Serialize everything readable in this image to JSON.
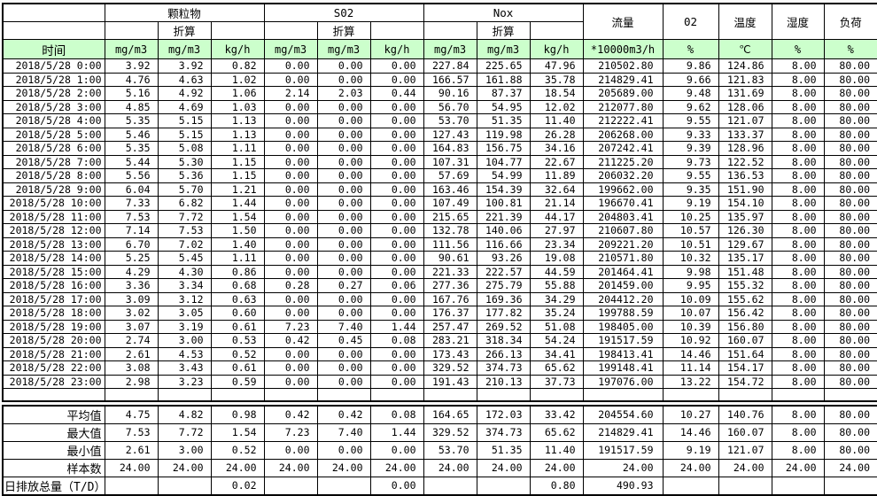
{
  "table": {
    "header": {
      "time_label": "时间",
      "groups": [
        {
          "label": "颗粒物",
          "sub": "折算"
        },
        {
          "label": "S02",
          "sub": "折算"
        },
        {
          "label": "Nox",
          "sub": "折算"
        }
      ],
      "flow_label": "流量",
      "o2_label": "02",
      "temp_label": "温度",
      "humidity_label": "湿度",
      "load_label": "负荷",
      "units": [
        "mg/m3",
        "mg/m3",
        "kg/h",
        "mg/m3",
        "mg/m3",
        "kg/h",
        "mg/m3",
        "mg/m3",
        "kg/h",
        "*10000m3/h",
        "%",
        "℃",
        "%",
        "%"
      ]
    },
    "header_green": "#ccffcc",
    "rows": [
      {
        "time": "2018/5/28 0:00",
        "v": [
          "3.92",
          "3.92",
          "0.82",
          "0.00",
          "0.00",
          "0.00",
          "227.84",
          "225.65",
          "47.96",
          "210502.80",
          "9.86",
          "124.86",
          "8.00",
          "80.00"
        ]
      },
      {
        "time": "2018/5/28 1:00",
        "v": [
          "4.76",
          "4.63",
          "1.02",
          "0.00",
          "0.00",
          "0.00",
          "166.57",
          "161.88",
          "35.78",
          "214829.41",
          "9.66",
          "121.83",
          "8.00",
          "80.00"
        ]
      },
      {
        "time": "2018/5/28 2:00",
        "v": [
          "5.16",
          "4.92",
          "1.06",
          "2.14",
          "2.03",
          "0.44",
          "90.16",
          "87.37",
          "18.54",
          "205689.00",
          "9.48",
          "131.69",
          "8.00",
          "80.00"
        ]
      },
      {
        "time": "2018/5/28 3:00",
        "v": [
          "4.85",
          "4.69",
          "1.03",
          "0.00",
          "0.00",
          "0.00",
          "56.70",
          "54.95",
          "12.02",
          "212077.80",
          "9.62",
          "128.06",
          "8.00",
          "80.00"
        ]
      },
      {
        "time": "2018/5/28 4:00",
        "v": [
          "5.35",
          "5.15",
          "1.13",
          "0.00",
          "0.00",
          "0.00",
          "53.70",
          "51.35",
          "11.40",
          "212222.41",
          "9.55",
          "121.07",
          "8.00",
          "80.00"
        ]
      },
      {
        "time": "2018/5/28 5:00",
        "v": [
          "5.46",
          "5.15",
          "1.13",
          "0.00",
          "0.00",
          "0.00",
          "127.43",
          "119.98",
          "26.28",
          "206268.00",
          "9.33",
          "133.37",
          "8.00",
          "80.00"
        ]
      },
      {
        "time": "2018/5/28 6:00",
        "v": [
          "5.35",
          "5.08",
          "1.11",
          "0.00",
          "0.00",
          "0.00",
          "164.83",
          "156.75",
          "34.16",
          "207242.41",
          "9.39",
          "128.96",
          "8.00",
          "80.00"
        ]
      },
      {
        "time": "2018/5/28 7:00",
        "v": [
          "5.44",
          "5.30",
          "1.15",
          "0.00",
          "0.00",
          "0.00",
          "107.31",
          "104.77",
          "22.67",
          "211225.20",
          "9.73",
          "122.52",
          "8.00",
          "80.00"
        ]
      },
      {
        "time": "2018/5/28 8:00",
        "v": [
          "5.56",
          "5.36",
          "1.15",
          "0.00",
          "0.00",
          "0.00",
          "57.69",
          "54.99",
          "11.89",
          "206032.20",
          "9.55",
          "136.53",
          "8.00",
          "80.00"
        ]
      },
      {
        "time": "2018/5/28 9:00",
        "v": [
          "6.04",
          "5.70",
          "1.21",
          "0.00",
          "0.00",
          "0.00",
          "163.46",
          "154.39",
          "32.64",
          "199662.00",
          "9.35",
          "151.90",
          "8.00",
          "80.00"
        ]
      },
      {
        "time": "2018/5/28 10:00",
        "v": [
          "7.33",
          "6.82",
          "1.44",
          "0.00",
          "0.00",
          "0.00",
          "107.49",
          "100.81",
          "21.14",
          "196670.41",
          "9.19",
          "154.10",
          "8.00",
          "80.00"
        ]
      },
      {
        "time": "2018/5/28 11:00",
        "v": [
          "7.53",
          "7.72",
          "1.54",
          "0.00",
          "0.00",
          "0.00",
          "215.65",
          "221.39",
          "44.17",
          "204803.41",
          "10.25",
          "135.97",
          "8.00",
          "80.00"
        ]
      },
      {
        "time": "2018/5/28 12:00",
        "v": [
          "7.14",
          "7.53",
          "1.50",
          "0.00",
          "0.00",
          "0.00",
          "132.78",
          "140.06",
          "27.97",
          "210607.80",
          "10.57",
          "126.30",
          "8.00",
          "80.00"
        ]
      },
      {
        "time": "2018/5/28 13:00",
        "v": [
          "6.70",
          "7.02",
          "1.40",
          "0.00",
          "0.00",
          "0.00",
          "111.56",
          "116.66",
          "23.34",
          "209221.20",
          "10.51",
          "129.67",
          "8.00",
          "80.00"
        ]
      },
      {
        "time": "2018/5/28 14:00",
        "v": [
          "5.25",
          "5.45",
          "1.11",
          "0.00",
          "0.00",
          "0.00",
          "90.61",
          "93.26",
          "19.08",
          "210571.80",
          "10.32",
          "135.17",
          "8.00",
          "80.00"
        ]
      },
      {
        "time": "2018/5/28 15:00",
        "v": [
          "4.29",
          "4.30",
          "0.86",
          "0.00",
          "0.00",
          "0.00",
          "221.33",
          "222.57",
          "44.59",
          "201464.41",
          "9.98",
          "151.48",
          "8.00",
          "80.00"
        ]
      },
      {
        "time": "2018/5/28 16:00",
        "v": [
          "3.36",
          "3.34",
          "0.68",
          "0.28",
          "0.27",
          "0.06",
          "277.36",
          "275.79",
          "55.88",
          "201459.00",
          "9.95",
          "155.32",
          "8.00",
          "80.00"
        ]
      },
      {
        "time": "2018/5/28 17:00",
        "v": [
          "3.09",
          "3.12",
          "0.63",
          "0.00",
          "0.00",
          "0.00",
          "167.76",
          "169.36",
          "34.29",
          "204412.20",
          "10.09",
          "155.62",
          "8.00",
          "80.00"
        ]
      },
      {
        "time": "2018/5/28 18:00",
        "v": [
          "3.02",
          "3.05",
          "0.60",
          "0.00",
          "0.00",
          "0.00",
          "176.37",
          "177.82",
          "35.24",
          "199788.59",
          "10.07",
          "156.42",
          "8.00",
          "80.00"
        ]
      },
      {
        "time": "2018/5/28 19:00",
        "v": [
          "3.07",
          "3.19",
          "0.61",
          "7.23",
          "7.40",
          "1.44",
          "257.47",
          "269.52",
          "51.08",
          "198405.00",
          "10.39",
          "156.80",
          "8.00",
          "80.00"
        ]
      },
      {
        "time": "2018/5/28 20:00",
        "v": [
          "2.74",
          "3.00",
          "0.53",
          "0.42",
          "0.45",
          "0.08",
          "283.21",
          "318.34",
          "54.24",
          "191517.59",
          "10.92",
          "160.07",
          "8.00",
          "80.00"
        ]
      },
      {
        "time": "2018/5/28 21:00",
        "v": [
          "2.61",
          "4.53",
          "0.52",
          "0.00",
          "0.00",
          "0.00",
          "173.43",
          "266.13",
          "34.41",
          "198413.41",
          "14.46",
          "151.64",
          "8.00",
          "80.00"
        ]
      },
      {
        "time": "2018/5/28 22:00",
        "v": [
          "3.08",
          "3.43",
          "0.61",
          "0.00",
          "0.00",
          "0.00",
          "329.52",
          "374.73",
          "65.62",
          "199148.41",
          "11.14",
          "154.17",
          "8.00",
          "80.00"
        ]
      },
      {
        "time": "2018/5/28 23:00",
        "v": [
          "2.98",
          "3.23",
          "0.59",
          "0.00",
          "0.00",
          "0.00",
          "191.43",
          "210.13",
          "37.73",
          "197076.00",
          "13.22",
          "154.72",
          "8.00",
          "80.00"
        ]
      }
    ],
    "summary_rows": [
      {
        "label": "平均值",
        "align": "right",
        "v": [
          "4.75",
          "4.82",
          "0.98",
          "0.42",
          "0.42",
          "0.08",
          "164.65",
          "172.03",
          "33.42",
          "204554.60",
          "10.27",
          "140.76",
          "8.00",
          "80.00"
        ]
      },
      {
        "label": "最大值",
        "align": "right",
        "v": [
          "7.53",
          "7.72",
          "1.54",
          "7.23",
          "7.40",
          "1.44",
          "329.52",
          "374.73",
          "65.62",
          "214829.41",
          "14.46",
          "160.07",
          "8.00",
          "80.00"
        ]
      },
      {
        "label": "最小值",
        "align": "right",
        "v": [
          "2.61",
          "3.00",
          "0.52",
          "0.00",
          "0.00",
          "0.00",
          "53.70",
          "51.35",
          "11.40",
          "191517.59",
          "9.19",
          "121.07",
          "8.00",
          "80.00"
        ]
      },
      {
        "label": "样本数",
        "align": "right",
        "v": [
          "24.00",
          "24.00",
          "24.00",
          "24.00",
          "24.00",
          "24.00",
          "24.00",
          "24.00",
          "24.00",
          "24.00",
          "24.00",
          "24.00",
          "24.00",
          "24.00"
        ]
      },
      {
        "label": "日排放总量（T/D）",
        "align": "left",
        "v": [
          "",
          "",
          "0.02",
          "",
          "",
          "0.00",
          "",
          "",
          "0.80",
          "490.93",
          "",
          "",
          "",
          ""
        ]
      }
    ]
  }
}
